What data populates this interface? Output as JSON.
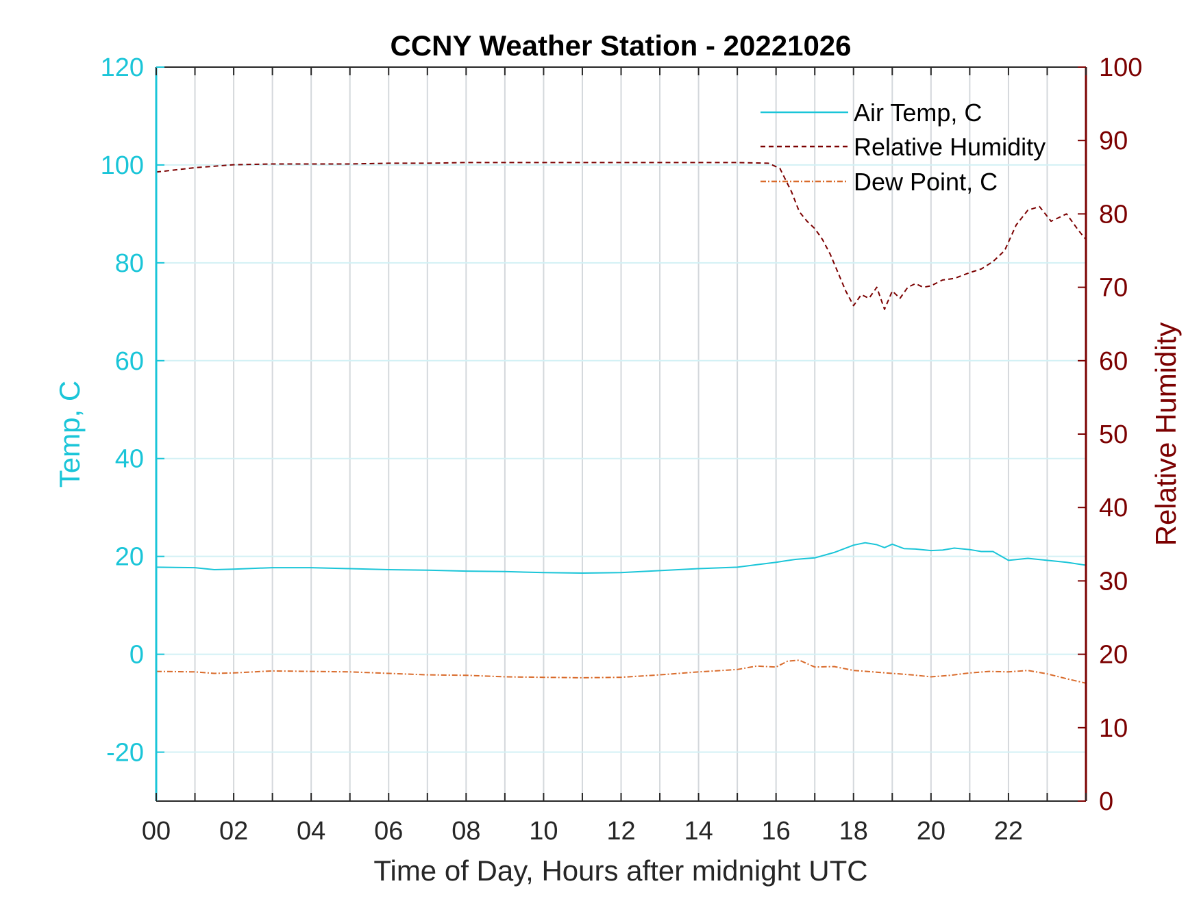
{
  "chart_data": {
    "type": "line",
    "title": "CCNY Weather Station - 20221026",
    "xlabel": "Time of Day, Hours after midnight UTC",
    "ylabel_left": "Temp, C",
    "ylabel_right": "Relative Humidity",
    "xlim": [
      0,
      24
    ],
    "ylim_left": [
      -30,
      120
    ],
    "ylim_right": [
      0,
      100
    ],
    "xticks": [
      0,
      2,
      4,
      6,
      8,
      10,
      12,
      14,
      16,
      18,
      20,
      22
    ],
    "xtick_labels": [
      "00",
      "02",
      "04",
      "06",
      "08",
      "10",
      "12",
      "14",
      "16",
      "18",
      "20",
      "22"
    ],
    "yticks_left": [
      -20,
      0,
      20,
      40,
      60,
      80,
      100,
      120
    ],
    "ytick_labels_left": [
      "-20",
      "0",
      "20",
      "40",
      "60",
      "80",
      "100",
      "120"
    ],
    "yticks_right": [
      0,
      10,
      20,
      30,
      40,
      50,
      60,
      70,
      80,
      90,
      100
    ],
    "ytick_labels_right": [
      "0",
      "10",
      "20",
      "30",
      "40",
      "50",
      "60",
      "70",
      "80",
      "90",
      "100"
    ],
    "grid": true,
    "legend_position": "top-right",
    "colors": {
      "temp_axis": "#1ac5d8",
      "rh_axis": "#7b0000",
      "dew": "#d96b2b",
      "grid": "#d4d8dc"
    },
    "series": [
      {
        "name": "Air Temp, C",
        "axis": "left",
        "style": "solid",
        "color": "#1ac5d8",
        "x": [
          0,
          1,
          1.5,
          2,
          3,
          4,
          5,
          6,
          7,
          8,
          9,
          10,
          11,
          12,
          13,
          14,
          15,
          15.5,
          16,
          16.5,
          17,
          17.5,
          18,
          18.3,
          18.6,
          18.8,
          19,
          19.3,
          19.6,
          20,
          20.3,
          20.6,
          21,
          21.3,
          21.6,
          22,
          22.5,
          23,
          23.5,
          24
        ],
        "y": [
          17.8,
          17.7,
          17.3,
          17.4,
          17.7,
          17.7,
          17.5,
          17.3,
          17.2,
          17.0,
          16.9,
          16.7,
          16.6,
          16.7,
          17.1,
          17.5,
          17.8,
          18.3,
          18.8,
          19.4,
          19.7,
          20.8,
          22.3,
          22.8,
          22.4,
          21.8,
          22.5,
          21.6,
          21.5,
          21.2,
          21.3,
          21.7,
          21.4,
          21.0,
          21.0,
          19.2,
          19.6,
          19.2,
          18.8,
          18.2
        ]
      },
      {
        "name": "Relative Humidity",
        "axis": "right",
        "style": "dashed",
        "color": "#7b0000",
        "x": [
          0,
          1,
          2,
          3,
          4,
          5,
          6,
          7,
          8,
          9,
          10,
          11,
          12,
          13,
          14,
          15,
          15.8,
          16.1,
          16.4,
          16.6,
          16.8,
          17.0,
          17.2,
          17.4,
          17.6,
          17.8,
          18.0,
          18.2,
          18.4,
          18.6,
          18.8,
          19.0,
          19.2,
          19.4,
          19.6,
          19.8,
          20.0,
          20.3,
          20.6,
          21.0,
          21.3,
          21.6,
          21.9,
          22.2,
          22.5,
          22.8,
          23.1,
          23.3,
          23.5,
          23.8,
          24
        ],
        "y": [
          85.7,
          86.3,
          86.7,
          86.8,
          86.8,
          86.8,
          86.9,
          86.9,
          87.0,
          87.0,
          87.0,
          87.0,
          87.0,
          87.0,
          87.0,
          87.0,
          86.9,
          86.2,
          83.0,
          80.3,
          79.0,
          78.0,
          76.5,
          74.5,
          72.0,
          69.5,
          67.5,
          69.0,
          68.5,
          70.0,
          67.0,
          69.5,
          68.5,
          70.0,
          70.5,
          70.0,
          70.2,
          71.0,
          71.2,
          72.0,
          72.5,
          73.5,
          75.0,
          78.5,
          80.5,
          81.0,
          79.0,
          79.5,
          80.0,
          77.8,
          76.5
        ]
      },
      {
        "name": "Dew Point, C",
        "axis": "left",
        "style": "dash-dot",
        "color": "#d96b2b",
        "x": [
          0,
          1,
          1.5,
          2,
          3,
          4,
          5,
          6,
          7,
          8,
          9,
          10,
          11,
          12,
          13,
          14,
          15,
          15.5,
          16,
          16.3,
          16.6,
          17,
          17.5,
          18,
          18.5,
          19,
          19.5,
          20,
          20.5,
          21,
          21.5,
          22,
          22.5,
          23,
          23.5,
          24
        ],
        "y": [
          -3.5,
          -3.6,
          -3.9,
          -3.8,
          -3.4,
          -3.5,
          -3.6,
          -3.9,
          -4.2,
          -4.3,
          -4.6,
          -4.7,
          -4.8,
          -4.7,
          -4.2,
          -3.6,
          -3.1,
          -2.4,
          -2.6,
          -1.4,
          -1.2,
          -2.6,
          -2.5,
          -3.3,
          -3.6,
          -3.9,
          -4.2,
          -4.6,
          -4.3,
          -3.8,
          -3.5,
          -3.6,
          -3.3,
          -4.0,
          -5.0,
          -5.9
        ]
      }
    ]
  }
}
